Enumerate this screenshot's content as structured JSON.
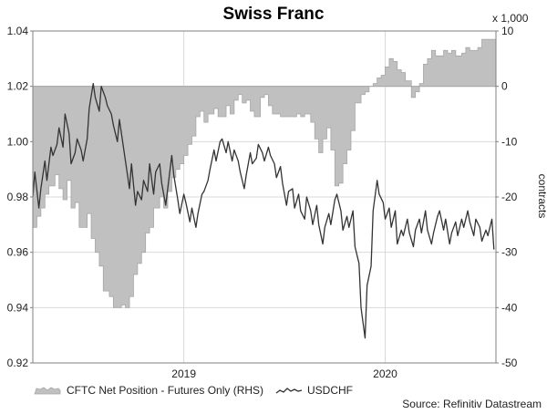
{
  "chart_data": {
    "type": "line",
    "title": "Swiss Franc",
    "left_axis": {
      "range": [
        0.92,
        1.04
      ],
      "ticks": [
        "0.92",
        "0.94",
        "0.96",
        "0.98",
        "1.00",
        "1.02",
        "1.04"
      ]
    },
    "right_axis": {
      "label": "contracts",
      "multiplier_label": "x 1,000",
      "range": [
        -50,
        10
      ],
      "ticks": [
        "-50",
        "-40",
        "-30",
        "-20",
        "-10",
        "0",
        "10"
      ]
    },
    "x_axis": {
      "range": [
        2018.25,
        2020.55
      ],
      "tick_labels": [
        {
          "label": "2019",
          "x": 2019.0
        },
        {
          "label": "2020",
          "x": 2020.0
        }
      ]
    },
    "grid": true,
    "legend": "bottom",
    "source": "Source: Refinitiv Datastream",
    "series": [
      {
        "name": "CFTC Net Position - Futures Only (RHS)",
        "type": "area",
        "axis": "right",
        "color": "#c0c0c0",
        "edge_color": "#a6a6a6",
        "x": [
          2018.25,
          2018.27,
          2018.29,
          2018.31,
          2018.33,
          2018.36,
          2018.38,
          2018.4,
          2018.42,
          2018.44,
          2018.46,
          2018.48,
          2018.52,
          2018.54,
          2018.56,
          2018.58,
          2018.6,
          2018.63,
          2018.65,
          2018.67,
          2018.69,
          2018.71,
          2018.73,
          2018.75,
          2018.77,
          2018.79,
          2018.81,
          2018.83,
          2018.85,
          2018.88,
          2018.9,
          2018.92,
          2018.94,
          2018.96,
          2018.98,
          2019.0,
          2019.02,
          2019.04,
          2019.06,
          2019.08,
          2019.1,
          2019.12,
          2019.15,
          2019.17,
          2019.19,
          2019.21,
          2019.23,
          2019.25,
          2019.27,
          2019.29,
          2019.31,
          2019.33,
          2019.35,
          2019.38,
          2019.4,
          2019.42,
          2019.44,
          2019.46,
          2019.48,
          2019.5,
          2019.52,
          2019.54,
          2019.56,
          2019.58,
          2019.6,
          2019.63,
          2019.65,
          2019.67,
          2019.69,
          2019.71,
          2019.73,
          2019.75,
          2019.77,
          2019.79,
          2019.81,
          2019.83,
          2019.85,
          2019.88,
          2019.9,
          2019.92,
          2019.94,
          2019.96,
          2019.98,
          2020.0,
          2020.02,
          2020.04,
          2020.06,
          2020.08,
          2020.1,
          2020.13,
          2020.15,
          2020.17,
          2020.19,
          2020.21,
          2020.23,
          2020.25,
          2020.27,
          2020.29,
          2020.31,
          2020.33,
          2020.35,
          2020.38,
          2020.4,
          2020.42,
          2020.44,
          2020.46,
          2020.48,
          2020.5,
          2020.52,
          2020.55
        ],
        "values": [
          -25.5,
          -23.5,
          -22.0,
          -19.5,
          -18.0,
          -16.0,
          -18.5,
          -20.5,
          -17.0,
          -22.0,
          -21.0,
          -25.5,
          -23.0,
          -27.5,
          -30.0,
          -32.5,
          -37.0,
          -38.0,
          -40.0,
          -40.0,
          -39.5,
          -40.0,
          -38.0,
          -34.0,
          -32.0,
          -30.0,
          -26.5,
          -25.5,
          -22.0,
          -20.0,
          -22.0,
          -19.0,
          -16.5,
          -15.0,
          -14.0,
          -12.5,
          -10.5,
          -9.0,
          -5.5,
          -4.5,
          -6.5,
          -5.0,
          -4.0,
          -5.5,
          -5.5,
          -3.5,
          -5.0,
          -2.5,
          -1.5,
          -3.0,
          -2.5,
          -4.5,
          -5.5,
          -2.0,
          -1.5,
          -3.5,
          -5.0,
          -5.0,
          -5.5,
          -5.5,
          -5.5,
          -5.5,
          -5.0,
          -5.5,
          -5.0,
          -6.5,
          -9.5,
          -12.0,
          -9.5,
          -7.5,
          -11.5,
          -18.0,
          -17.5,
          -14.0,
          -11.5,
          -8.0,
          -3.0,
          -1.5,
          -1.0,
          0.0,
          0.5,
          1.5,
          2.0,
          3.5,
          5.0,
          4.5,
          3.0,
          2.5,
          1.0,
          -2.0,
          -1.0,
          0.5,
          4.0,
          5.0,
          6.5,
          5.5,
          5.5,
          6.5,
          6.0,
          6.5,
          5.5,
          6.0,
          7.0,
          6.5,
          6.5,
          7.0,
          8.5,
          8.5,
          8.5,
          8.5
        ]
      },
      {
        "name": "USDCHF",
        "type": "line",
        "axis": "left",
        "color": "#333333",
        "x": [
          2018.25,
          2018.26,
          2018.28,
          2018.29,
          2018.31,
          2018.32,
          2018.34,
          2018.35,
          2018.37,
          2018.38,
          2018.4,
          2018.41,
          2018.43,
          2018.44,
          2018.46,
          2018.47,
          2018.49,
          2018.5,
          2018.52,
          2018.53,
          2018.55,
          2018.56,
          2018.58,
          2018.59,
          2018.61,
          2018.62,
          2018.64,
          2018.65,
          2018.67,
          2018.68,
          2018.7,
          2018.71,
          2018.73,
          2018.74,
          2018.76,
          2018.77,
          2018.79,
          2018.8,
          2018.82,
          2018.83,
          2018.85,
          2018.86,
          2018.88,
          2018.89,
          2018.91,
          2018.92,
          2018.94,
          2018.95,
          2018.97,
          2018.98,
          2019.0,
          2019.01,
          2019.03,
          2019.04,
          2019.06,
          2019.07,
          2019.09,
          2019.1,
          2019.12,
          2019.13,
          2019.15,
          2019.16,
          2019.18,
          2019.19,
          2019.21,
          2019.22,
          2019.24,
          2019.25,
          2019.27,
          2019.28,
          2019.3,
          2019.31,
          2019.33,
          2019.34,
          2019.36,
          2019.37,
          2019.39,
          2019.4,
          2019.42,
          2019.43,
          2019.45,
          2019.46,
          2019.48,
          2019.49,
          2019.51,
          2019.52,
          2019.54,
          2019.55,
          2019.57,
          2019.58,
          2019.6,
          2019.61,
          2019.63,
          2019.64,
          2019.66,
          2019.67,
          2019.69,
          2019.7,
          2019.72,
          2019.73,
          2019.75,
          2019.76,
          2019.78,
          2019.79,
          2019.81,
          2019.82,
          2019.84,
          2019.85,
          2019.87,
          2019.88,
          2019.9,
          2019.91,
          2019.93,
          2019.94,
          2019.96,
          2019.97,
          2019.99,
          2020.0,
          2020.02,
          2020.03,
          2020.05,
          2020.06,
          2020.08,
          2020.09,
          2020.11,
          2020.12,
          2020.14,
          2020.15,
          2020.17,
          2020.18,
          2020.2,
          2020.21,
          2020.23,
          2020.24,
          2020.26,
          2020.27,
          2020.29,
          2020.3,
          2020.32,
          2020.33,
          2020.35,
          2020.36,
          2020.38,
          2020.39,
          2020.41,
          2020.42,
          2020.44,
          2020.45,
          2020.47,
          2020.48,
          2020.5,
          2020.51,
          2020.53,
          2020.54
        ],
        "values": [
          0.98,
          0.989,
          0.976,
          0.983,
          0.993,
          0.986,
          0.998,
          0.995,
          0.999,
          1.005,
          0.998,
          1.01,
          1.003,
          0.992,
          0.996,
          1.001,
          0.997,
          0.993,
          1.001,
          1.012,
          1.021,
          1.016,
          1.011,
          1.02,
          1.016,
          1.013,
          1.01,
          1.006,
          1.0,
          1.008,
          0.998,
          0.993,
          0.983,
          0.992,
          0.977,
          0.982,
          0.979,
          0.986,
          0.982,
          0.992,
          0.981,
          0.989,
          0.992,
          0.985,
          0.977,
          0.983,
          0.995,
          0.988,
          0.979,
          0.974,
          0.981,
          0.978,
          0.971,
          0.976,
          0.969,
          0.974,
          0.981,
          0.982,
          0.986,
          0.99,
          0.997,
          0.993,
          1.0,
          1.001,
          0.996,
          1.0,
          0.993,
          0.997,
          0.993,
          0.989,
          0.983,
          0.988,
          0.996,
          0.992,
          0.994,
          0.999,
          0.996,
          0.993,
          0.998,
          0.995,
          0.992,
          0.987,
          0.991,
          0.985,
          0.977,
          0.982,
          0.983,
          0.976,
          0.981,
          0.975,
          0.972,
          0.98,
          0.975,
          0.97,
          0.977,
          0.97,
          0.963,
          0.969,
          0.974,
          0.97,
          0.979,
          0.981,
          0.975,
          0.968,
          0.973,
          0.969,
          0.975,
          0.962,
          0.956,
          0.94,
          0.929,
          0.948,
          0.955,
          0.975,
          0.986,
          0.981,
          0.978,
          0.972,
          0.976,
          0.969,
          0.975,
          0.963,
          0.968,
          0.966,
          0.972,
          0.967,
          0.962,
          0.968,
          0.972,
          0.967,
          0.975,
          0.968,
          0.963,
          0.967,
          0.973,
          0.975,
          0.968,
          0.972,
          0.963,
          0.967,
          0.971,
          0.966,
          0.972,
          0.969,
          0.975,
          0.971,
          0.966,
          0.972,
          0.969,
          0.964,
          0.968,
          0.966,
          0.972,
          0.961
        ]
      }
    ]
  }
}
